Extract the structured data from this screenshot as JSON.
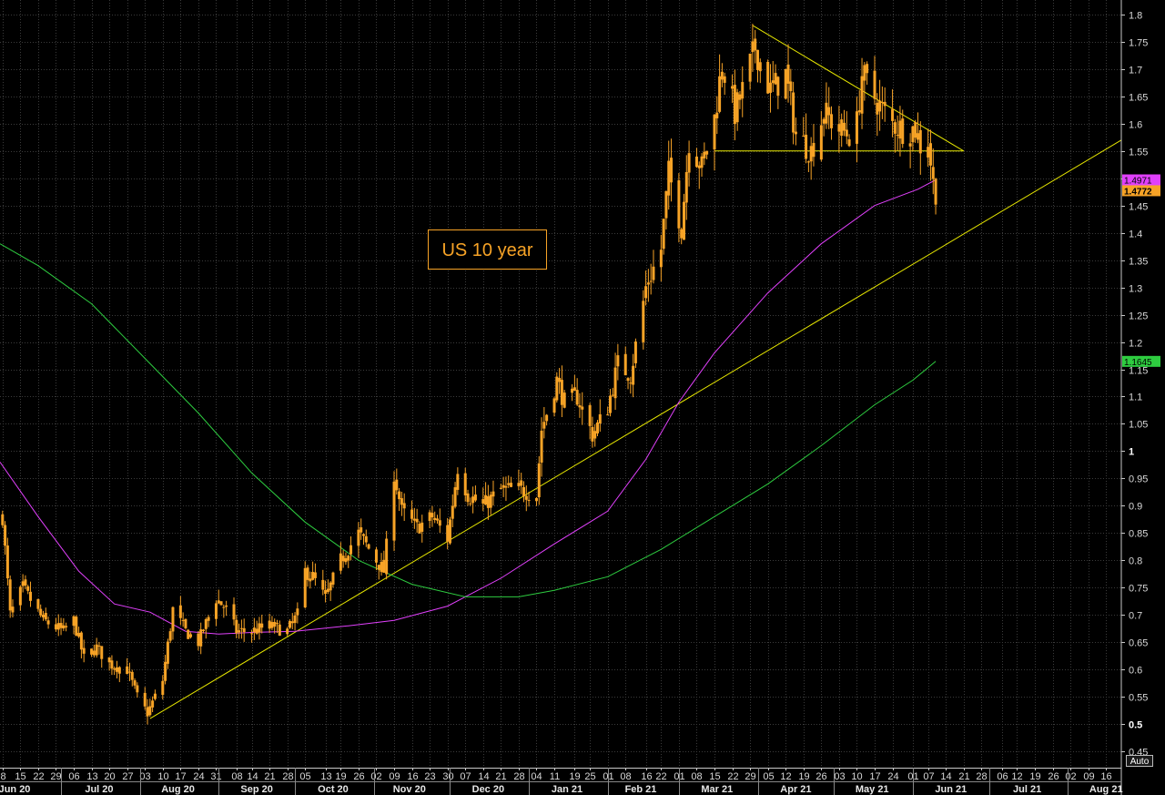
{
  "chart_data": {
    "type": "candlestick",
    "title": "US 10 year",
    "y_axis": {
      "ylim": [
        0.42,
        1.82
      ],
      "ticks": [
        "0.45",
        "0.5",
        "0.55",
        "0.6",
        "0.65",
        "0.7",
        "0.75",
        "0.8",
        "0.85",
        "0.9",
        "0.95",
        "1",
        "1.05",
        "1.1",
        "1.15",
        "1.2",
        "1.25",
        "1.3",
        "1.35",
        "1.4",
        "1.45",
        "1.5",
        "1.55",
        "1.6",
        "1.65",
        "1.7",
        "1.75",
        "1.8"
      ],
      "bold_ticks": [
        "0.5",
        "1"
      ],
      "auto_label": "Auto"
    },
    "x_axis": {
      "date_range": [
        "2020-06-07",
        "2021-08-22"
      ],
      "day_ticks": [
        [
          "2020-06-08",
          "8"
        ],
        [
          "2020-06-15",
          "15"
        ],
        [
          "2020-06-22",
          "22"
        ],
        [
          "2020-06-29",
          "29"
        ],
        [
          "2020-07-06",
          "06"
        ],
        [
          "2020-07-13",
          "13"
        ],
        [
          "2020-07-20",
          "20"
        ],
        [
          "2020-07-27",
          "27"
        ],
        [
          "2020-08-03",
          "03"
        ],
        [
          "2020-08-10",
          "10"
        ],
        [
          "2020-08-17",
          "17"
        ],
        [
          "2020-08-24",
          "24"
        ],
        [
          "2020-08-31",
          "31"
        ],
        [
          "2020-09-08",
          "08"
        ],
        [
          "2020-09-14",
          "14"
        ],
        [
          "2020-09-21",
          "21"
        ],
        [
          "2020-09-28",
          "28"
        ],
        [
          "2020-10-05",
          "05"
        ],
        [
          "2020-10-13",
          "13"
        ],
        [
          "2020-10-19",
          "19"
        ],
        [
          "2020-10-26",
          "26"
        ],
        [
          "2020-11-02",
          "02"
        ],
        [
          "2020-11-09",
          "09"
        ],
        [
          "2020-11-16",
          "16"
        ],
        [
          "2020-11-23",
          "23"
        ],
        [
          "2020-11-30",
          "30"
        ],
        [
          "2020-12-07",
          "07"
        ],
        [
          "2020-12-14",
          "14"
        ],
        [
          "2020-12-21",
          "21"
        ],
        [
          "2020-12-28",
          "28"
        ],
        [
          "2021-01-04",
          "04"
        ],
        [
          "2021-01-11",
          "11"
        ],
        [
          "2021-01-19",
          "19"
        ],
        [
          "2021-01-25",
          "25"
        ],
        [
          "2021-02-01",
          "01"
        ],
        [
          "2021-02-08",
          "08"
        ],
        [
          "2021-02-16",
          "16"
        ],
        [
          "2021-02-22",
          "22"
        ],
        [
          "2021-03-01",
          "01"
        ],
        [
          "2021-03-08",
          "08"
        ],
        [
          "2021-03-15",
          "15"
        ],
        [
          "2021-03-22",
          "22"
        ],
        [
          "2021-03-29",
          "29"
        ],
        [
          "2021-04-05",
          "05"
        ],
        [
          "2021-04-12",
          "12"
        ],
        [
          "2021-04-19",
          "19"
        ],
        [
          "2021-04-26",
          "26"
        ],
        [
          "2021-05-03",
          "03"
        ],
        [
          "2021-05-10",
          "10"
        ],
        [
          "2021-05-17",
          "17"
        ],
        [
          "2021-05-24",
          "24"
        ],
        [
          "2021-06-01",
          "01"
        ],
        [
          "2021-06-07",
          "07"
        ],
        [
          "2021-06-14",
          "14"
        ],
        [
          "2021-06-21",
          "21"
        ],
        [
          "2021-06-28",
          "28"
        ],
        [
          "2021-07-06",
          "06"
        ],
        [
          "2021-07-12",
          "12"
        ],
        [
          "2021-07-19",
          "19"
        ],
        [
          "2021-07-26",
          "26"
        ],
        [
          "2021-08-02",
          "02"
        ],
        [
          "2021-08-09",
          "09"
        ],
        [
          "2021-08-16",
          "16"
        ]
      ],
      "month_labels": [
        [
          "2020-06-01",
          "Jun 20"
        ],
        [
          "2020-07-16",
          "Jul 20"
        ],
        [
          "2020-08-16",
          "Aug 20"
        ],
        [
          "2020-09-16",
          "Sep 20"
        ],
        [
          "2020-10-16",
          "Oct 20"
        ],
        [
          "2020-11-15",
          "Nov 20"
        ],
        [
          "2020-12-16",
          "Dec 20"
        ],
        [
          "2021-01-16",
          "Jan 21"
        ],
        [
          "2021-02-14",
          "Feb 21"
        ],
        [
          "2021-03-16",
          "Mar 21"
        ],
        [
          "2021-04-16",
          "Apr 21"
        ],
        [
          "2021-05-16",
          "May 21"
        ],
        [
          "2021-06-16",
          "Jun 21"
        ],
        [
          "2021-07-16",
          "Jul 21"
        ],
        [
          "2021-08-16",
          "Aug 21"
        ]
      ]
    },
    "price_anchors": [
      [
        "2020-06-08",
        0.88
      ],
      [
        "2020-06-11",
        0.7
      ],
      [
        "2020-06-16",
        0.75
      ],
      [
        "2020-06-24",
        0.69
      ],
      [
        "2020-07-02",
        0.67
      ],
      [
        "2020-07-06",
        0.69
      ],
      [
        "2020-07-10",
        0.62
      ],
      [
        "2020-07-15",
        0.64
      ],
      [
        "2020-07-20",
        0.61
      ],
      [
        "2020-07-27",
        0.6
      ],
      [
        "2020-07-31",
        0.55
      ],
      [
        "2020-08-04",
        0.52
      ],
      [
        "2020-08-06",
        0.54
      ],
      [
        "2020-08-10",
        0.58
      ],
      [
        "2020-08-14",
        0.71
      ],
      [
        "2020-08-19",
        0.67
      ],
      [
        "2020-08-24",
        0.65
      ],
      [
        "2020-08-31",
        0.73
      ],
      [
        "2020-09-04",
        0.71
      ],
      [
        "2020-09-08",
        0.67
      ],
      [
        "2020-09-14",
        0.67
      ],
      [
        "2020-09-21",
        0.68
      ],
      [
        "2020-09-28",
        0.67
      ],
      [
        "2020-10-02",
        0.7
      ],
      [
        "2020-10-05",
        0.78
      ],
      [
        "2020-10-08",
        0.77
      ],
      [
        "2020-10-13",
        0.73
      ],
      [
        "2020-10-19",
        0.8
      ],
      [
        "2020-10-26",
        0.85
      ],
      [
        "2020-11-02",
        0.8
      ],
      [
        "2020-11-05",
        0.78
      ],
      [
        "2020-11-09",
        0.96
      ],
      [
        "2020-11-12",
        0.89
      ],
      [
        "2020-11-18",
        0.86
      ],
      [
        "2020-11-24",
        0.88
      ],
      [
        "2020-11-30",
        0.84
      ],
      [
        "2020-12-04",
        0.97
      ],
      [
        "2020-12-08",
        0.92
      ],
      [
        "2020-12-14",
        0.9
      ],
      [
        "2020-12-21",
        0.93
      ],
      [
        "2020-12-28",
        0.93
      ],
      [
        "2021-01-04",
        0.92
      ],
      [
        "2021-01-06",
        1.04
      ],
      [
        "2021-01-12",
        1.13
      ],
      [
        "2021-01-15",
        1.09
      ],
      [
        "2021-01-20",
        1.1
      ],
      [
        "2021-01-26",
        1.03
      ],
      [
        "2021-02-01",
        1.08
      ],
      [
        "2021-02-05",
        1.16
      ],
      [
        "2021-02-10",
        1.14
      ],
      [
        "2021-02-16",
        1.3
      ],
      [
        "2021-02-22",
        1.37
      ],
      [
        "2021-02-25",
        1.51
      ],
      [
        "2021-03-02",
        1.41
      ],
      [
        "2021-03-05",
        1.57
      ],
      [
        "2021-03-10",
        1.52
      ],
      [
        "2021-03-15",
        1.61
      ],
      [
        "2021-03-18",
        1.71
      ],
      [
        "2021-03-23",
        1.62
      ],
      [
        "2021-03-26",
        1.66
      ],
      [
        "2021-03-31",
        1.74
      ],
      [
        "2021-04-06",
        1.66
      ],
      [
        "2021-04-12",
        1.69
      ],
      [
        "2021-04-16",
        1.58
      ],
      [
        "2021-04-22",
        1.55
      ],
      [
        "2021-04-27",
        1.62
      ],
      [
        "2021-05-03",
        1.59
      ],
      [
        "2021-05-07",
        1.58
      ],
      [
        "2021-05-10",
        1.6
      ],
      [
        "2021-05-12",
        1.69
      ],
      [
        "2021-05-18",
        1.64
      ],
      [
        "2021-05-24",
        1.6
      ],
      [
        "2021-05-28",
        1.59
      ],
      [
        "2021-06-02",
        1.59
      ],
      [
        "2021-06-04",
        1.56
      ],
      [
        "2021-06-07",
        1.57
      ],
      [
        "2021-06-09",
        1.49
      ],
      [
        "2021-06-10",
        1.477
      ]
    ],
    "series": [
      {
        "name": "",
        "kind": "moving-average",
        "color": "#e040fb",
        "points": [
          [
            "2020-06-07",
            0.98
          ],
          [
            "2020-06-22",
            0.88
          ],
          [
            "2020-07-08",
            0.78
          ],
          [
            "2020-07-22",
            0.72
          ],
          [
            "2020-08-05",
            0.705
          ],
          [
            "2020-08-19",
            0.67
          ],
          [
            "2020-09-01",
            0.665
          ],
          [
            "2020-09-15",
            0.668
          ],
          [
            "2020-10-01",
            0.67
          ],
          [
            "2020-10-22",
            0.68
          ],
          [
            "2020-11-09",
            0.69
          ],
          [
            "2020-11-30",
            0.716
          ],
          [
            "2020-12-21",
            0.767
          ],
          [
            "2021-01-11",
            0.83
          ],
          [
            "2021-02-01",
            0.89
          ],
          [
            "2021-02-16",
            0.985
          ],
          [
            "2021-03-01",
            1.09
          ],
          [
            "2021-03-15",
            1.18
          ],
          [
            "2021-04-05",
            1.29
          ],
          [
            "2021-04-26",
            1.38
          ],
          [
            "2021-05-17",
            1.45
          ],
          [
            "2021-06-03",
            1.48
          ],
          [
            "2021-06-10",
            1.4971
          ]
        ],
        "last_value_label": "1.4971"
      },
      {
        "name": "",
        "kind": "moving-average",
        "color": "#2ecc40",
        "points": [
          [
            "2020-06-07",
            1.38
          ],
          [
            "2020-06-22",
            1.34
          ],
          [
            "2020-07-13",
            1.27
          ],
          [
            "2020-08-03",
            1.17
          ],
          [
            "2020-08-24",
            1.07
          ],
          [
            "2020-09-14",
            0.96
          ],
          [
            "2020-10-05",
            0.87
          ],
          [
            "2020-10-26",
            0.8
          ],
          [
            "2020-11-16",
            0.756
          ],
          [
            "2020-12-07",
            0.733
          ],
          [
            "2020-12-28",
            0.733
          ],
          [
            "2021-01-11",
            0.745
          ],
          [
            "2021-02-01",
            0.77
          ],
          [
            "2021-02-22",
            0.82
          ],
          [
            "2021-03-15",
            0.88
          ],
          [
            "2021-04-05",
            0.94
          ],
          [
            "2021-04-26",
            1.01
          ],
          [
            "2021-05-17",
            1.085
          ],
          [
            "2021-06-01",
            1.13
          ],
          [
            "2021-06-10",
            1.1645
          ]
        ],
        "last_value_label": "1.1645"
      }
    ],
    "last_price_label": "1.4772",
    "trendlines": [
      {
        "from": [
          "2020-08-05",
          0.51
        ],
        "to": [
          "2021-08-22",
          1.57
        ]
      },
      {
        "from": [
          "2021-03-30",
          1.78
        ],
        "to": [
          "2021-06-21",
          1.55
        ]
      },
      {
        "from": [
          "2021-03-15",
          1.55
        ],
        "to": [
          "2021-06-21",
          1.55
        ]
      }
    ],
    "colors": {
      "candle": "#f7a326",
      "ma_purple": "#e040fb",
      "ma_green": "#2ecc40",
      "trendline": "#e6e600",
      "grid": "#3b3b3b",
      "background": "#000000"
    }
  }
}
